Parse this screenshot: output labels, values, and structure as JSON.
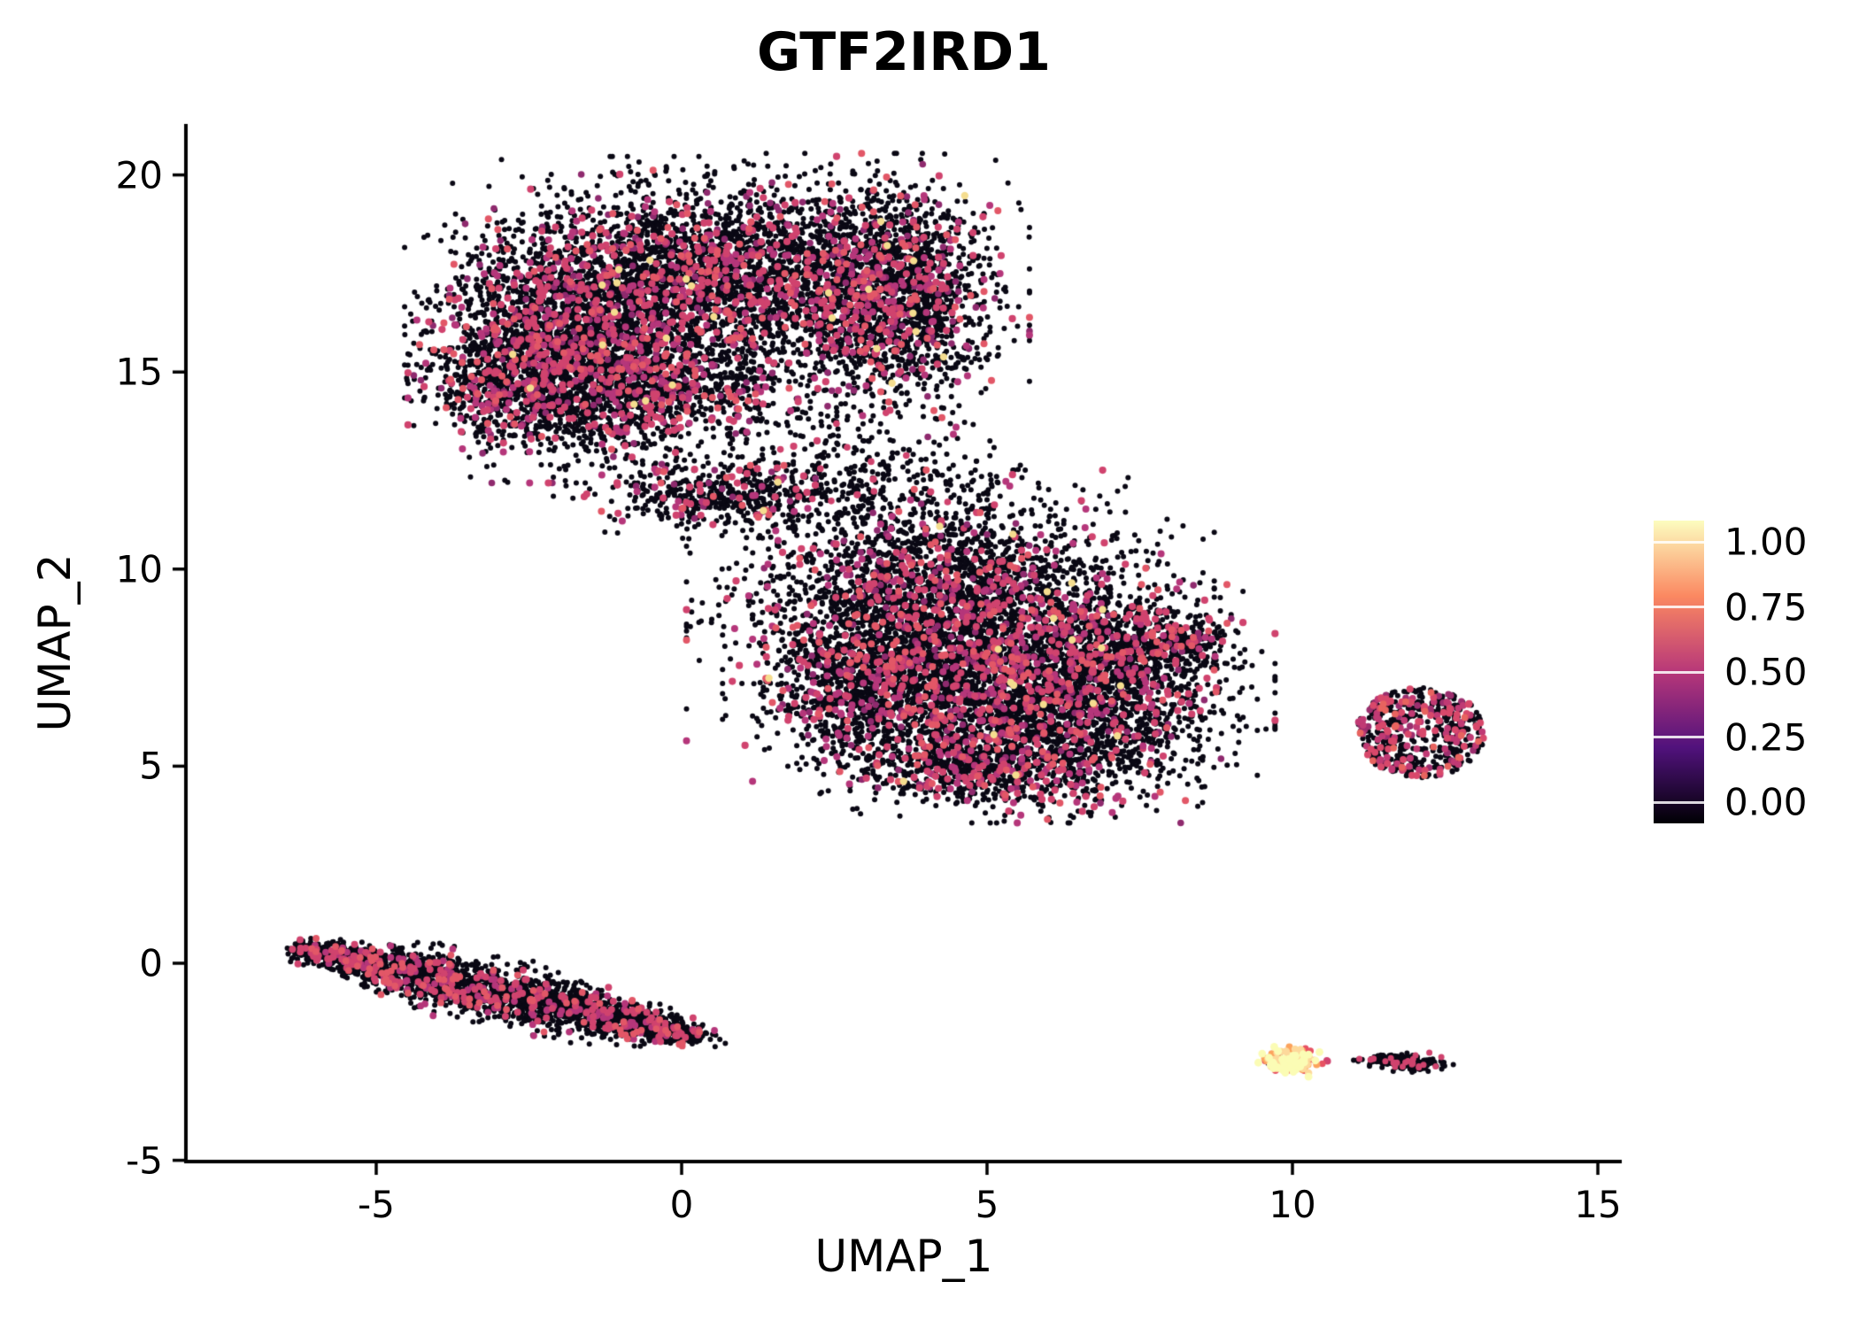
{
  "chart_data": {
    "type": "scatter",
    "title": "GTF2IRD1",
    "xlabel": "UMAP_1",
    "ylabel": "UMAP_2",
    "xlim": [
      -8.1,
      15.4
    ],
    "ylim": [
      -5.3,
      21.3
    ],
    "x_ticks": [
      -5,
      0,
      5,
      10,
      15
    ],
    "y_ticks": [
      -5,
      0,
      5,
      10,
      15,
      20
    ],
    "grid": false,
    "legend_position": "right",
    "colorbar": {
      "ticks": [
        1.0,
        0.75,
        0.5,
        0.25,
        0.0
      ],
      "tick_labels": [
        "1.00",
        "0.75",
        "0.50",
        "0.25",
        "0.00"
      ],
      "gradient": [
        {
          "v": 0.0,
          "color": "#000004"
        },
        {
          "v": 0.25,
          "color": "#51127c"
        },
        {
          "v": 0.5,
          "color": "#b73779"
        },
        {
          "v": 0.75,
          "color": "#fb8861"
        },
        {
          "v": 1.0,
          "color": "#fcfdbf"
        }
      ]
    },
    "palettes": {
      "low": [
        {
          "color": "#0a0814",
          "w": 0.825,
          "r": 3.0
        },
        {
          "color": "#8f2a6e",
          "w": 0.03,
          "r": 3.8
        },
        {
          "color": "#b5367a",
          "w": 0.05,
          "r": 4.0
        },
        {
          "color": "#d0436e",
          "w": 0.06,
          "r": 4.1
        },
        {
          "color": "#e25767",
          "w": 0.032,
          "r": 4.0
        },
        {
          "color": "#f5dd8f",
          "w": 0.003,
          "r": 4.2
        }
      ],
      "stripe_low": [
        {
          "color": "#0a0814",
          "w": 0.86,
          "r": 3.0
        },
        {
          "color": "#b5367a",
          "w": 0.05,
          "r": 3.9
        },
        {
          "color": "#d0436e",
          "w": 0.06,
          "r": 4.0
        },
        {
          "color": "#e25767",
          "w": 0.03,
          "r": 3.9
        }
      ],
      "sparse": [
        {
          "color": "#0a0814",
          "w": 0.95,
          "r": 3.0
        },
        {
          "color": "#d0436e",
          "w": 0.05,
          "r": 3.8
        }
      ],
      "ring": [
        {
          "color": "#0a0814",
          "w": 0.66,
          "r": 3.0
        },
        {
          "color": "#9c2e6e",
          "w": 0.08,
          "r": 3.8
        },
        {
          "color": "#c03a74",
          "w": 0.12,
          "r": 3.9
        },
        {
          "color": "#d8486b",
          "w": 0.1,
          "r": 4.0
        },
        {
          "color": "#e8645f",
          "w": 0.04,
          "r": 3.9
        }
      ],
      "hot": [
        {
          "color": "#2a1040",
          "w": 0.08,
          "r": 3.2
        },
        {
          "color": "#e75263",
          "w": 0.13,
          "r": 3.8
        },
        {
          "color": "#fca35d",
          "w": 0.2,
          "r": 4.0
        },
        {
          "color": "#fdd99b",
          "w": 0.23,
          "r": 4.2
        },
        {
          "color": "#fbfcb5",
          "w": 0.36,
          "r": 4.4
        }
      ],
      "dark_island": [
        {
          "color": "#0a0814",
          "w": 0.9,
          "r": 3.0
        },
        {
          "color": "#d0436e",
          "w": 0.1,
          "r": 3.5
        }
      ],
      "black_only": [
        {
          "color": "#0a0814",
          "w": 1,
          "r": 3.0
        }
      ],
      "red_only": [
        {
          "color": "#d0436e",
          "w": 1,
          "r": 3.8
        }
      ]
    },
    "clusters": [
      {
        "name": "upper-left-lobe",
        "type": "gaussian",
        "cx": -1.7,
        "cy": 16.1,
        "sx": 1.05,
        "sy": 1.45,
        "n": 2600,
        "palette": "low"
      },
      {
        "name": "upper-mid-lobe",
        "type": "gaussian",
        "cx": 0.9,
        "cy": 17.5,
        "sx": 1.5,
        "sy": 1.1,
        "n": 2500,
        "palette": "low"
      },
      {
        "name": "upper-right-lobe",
        "type": "gaussian",
        "cx": 3.4,
        "cy": 16.9,
        "sx": 0.85,
        "sy": 1.35,
        "n": 1800,
        "palette": "low"
      },
      {
        "name": "upper-lower-band",
        "type": "gaussian",
        "cx": -0.7,
        "cy": 14.6,
        "sx": 1.4,
        "sy": 0.75,
        "n": 1100,
        "palette": "low"
      },
      {
        "name": "upper-left-tip",
        "type": "gaussian",
        "cx": -2.9,
        "cy": 14.8,
        "sx": 0.55,
        "sy": 0.65,
        "n": 420,
        "palette": "low"
      },
      {
        "name": "neck-strip",
        "type": "gaussian",
        "cx": 0.6,
        "cy": 11.9,
        "sx": 1.0,
        "sy": 0.45,
        "n": 480,
        "palette": "low"
      },
      {
        "name": "neck-scatter-a",
        "type": "gaussian",
        "cx": 2.6,
        "cy": 12.3,
        "sx": 1.2,
        "sy": 0.9,
        "n": 280,
        "palette": "sparse"
      },
      {
        "name": "neck-scatter-b",
        "type": "gaussian",
        "cx": 4.0,
        "cy": 11.2,
        "sx": 0.9,
        "sy": 0.9,
        "n": 150,
        "palette": "sparse"
      },
      {
        "name": "mid-upper-lobe",
        "type": "gaussian",
        "cx": 4.4,
        "cy": 9.0,
        "sx": 1.6,
        "sy": 1.3,
        "n": 2900,
        "palette": "low"
      },
      {
        "name": "mid-lower-lobe",
        "type": "gaussian",
        "cx": 5.8,
        "cy": 6.8,
        "sx": 1.45,
        "sy": 1.2,
        "n": 2600,
        "palette": "low"
      },
      {
        "name": "mid-left-lobe",
        "type": "gaussian",
        "cx": 3.1,
        "cy": 7.0,
        "sx": 0.9,
        "sy": 1.0,
        "n": 900,
        "palette": "low"
      },
      {
        "name": "mid-right-lobe",
        "type": "gaussian",
        "cx": 7.3,
        "cy": 8.0,
        "sx": 0.7,
        "sy": 0.6,
        "n": 450,
        "palette": "low"
      },
      {
        "name": "mid-right-tip",
        "type": "gaussian",
        "cx": 8.3,
        "cy": 8.2,
        "sx": 0.32,
        "sy": 0.26,
        "n": 140,
        "palette": "low"
      },
      {
        "name": "mid-bottom-tail",
        "type": "gaussian",
        "cx": 5.0,
        "cy": 5.0,
        "sx": 1.05,
        "sy": 0.5,
        "n": 600,
        "palette": "low"
      },
      {
        "name": "mid-halo",
        "type": "gaussian",
        "cx": 7.4,
        "cy": 5.9,
        "sx": 0.75,
        "sy": 0.75,
        "n": 180,
        "palette": "sparse"
      },
      {
        "name": "mid-outlier-dot",
        "type": "gaussian",
        "cx": 6.7,
        "cy": 3.8,
        "sx": 0.06,
        "sy": 0.05,
        "n": 3,
        "palette": "black_only"
      },
      {
        "name": "left-stripe",
        "type": "stripe",
        "x0": -6.2,
        "y0": 0.35,
        "x1": 0.25,
        "y1": -1.85,
        "w": 0.23,
        "n": 2600,
        "palette": "stripe_low"
      },
      {
        "name": "right-ring",
        "type": "ring",
        "cx": 12.1,
        "cy": 5.85,
        "rin": 0.35,
        "rout": 1.0,
        "rx": 1.05,
        "ry": 1.15,
        "n": 560,
        "palette": "ring"
      },
      {
        "name": "hot-island",
        "type": "gaussian",
        "cx": 9.95,
        "cy": -2.5,
        "sx": 0.2,
        "sy": 0.14,
        "n": 170,
        "palette": "hot"
      },
      {
        "name": "hot-island-outliers",
        "type": "gaussian",
        "cx": 10.55,
        "cy": -2.45,
        "sx": 0.05,
        "sy": 0.04,
        "n": 2,
        "palette": "red_only"
      },
      {
        "name": "dark-island",
        "type": "stripe",
        "x0": 11.35,
        "y0": -2.45,
        "x1": 12.3,
        "y1": -2.55,
        "w": 0.08,
        "n": 230,
        "palette": "dark_island"
      }
    ]
  }
}
